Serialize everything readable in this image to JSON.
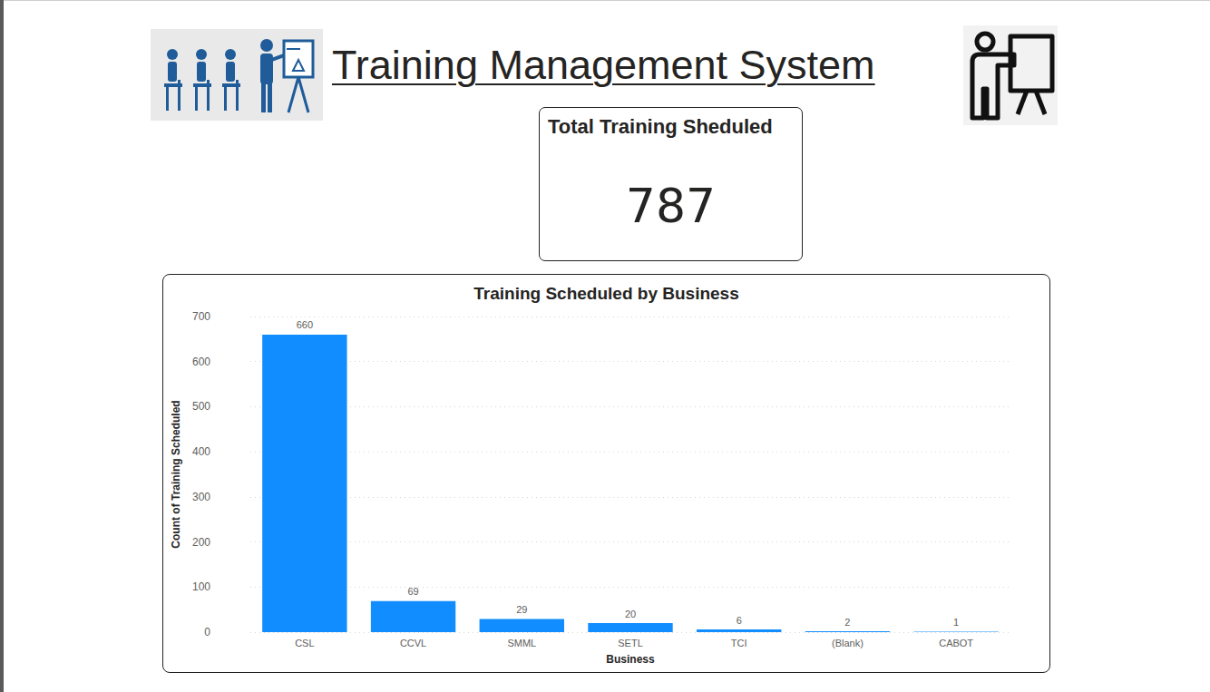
{
  "header": {
    "title": "Training Management System"
  },
  "card": {
    "title": "Total Training Sheduled",
    "value": 787
  },
  "chart_data": {
    "type": "bar",
    "title": "Training Scheduled by Business",
    "x_label": "Business",
    "y_label": "Count of Training Scheduled",
    "categories": [
      "CSL",
      "CCVL",
      "SMML",
      "SETL",
      "TCI",
      "(Blank)",
      "CABOT"
    ],
    "values": [
      660,
      69,
      29,
      20,
      6,
      2,
      1
    ],
    "color": "#118dff",
    "ylim": [
      0,
      700
    ],
    "yticks": [
      0,
      100,
      200,
      300,
      400,
      500,
      600,
      700
    ],
    "grid": true,
    "data_labels": true
  }
}
